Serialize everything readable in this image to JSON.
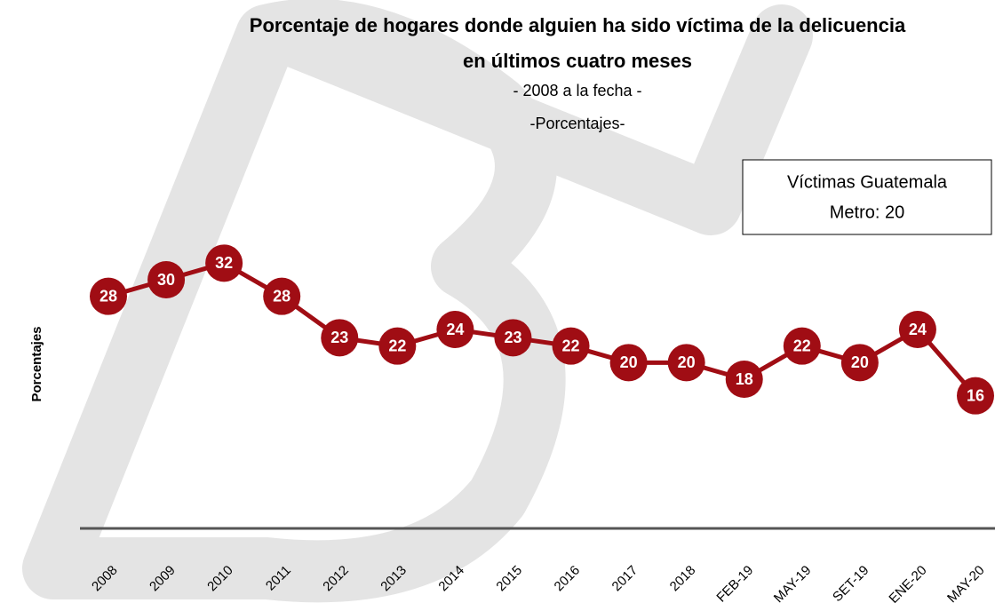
{
  "chart_data": {
    "type": "line",
    "title": [
      "Porcentaje de hogares donde alguien ha sido víctima de la delicuencia",
      "en últimos cuatro meses"
    ],
    "subtitle": [
      "- 2008 a la fecha -",
      "-Porcentajes-"
    ],
    "annotation": [
      "Víctimas Guatemala",
      "Metro: 20"
    ],
    "ylabel": "Porcentajes",
    "categories": [
      "2008",
      "2009",
      "2010",
      "2011",
      "2012",
      "2013",
      "2014",
      "2015",
      "2016",
      "2017",
      "2018",
      "FEB-19",
      "MAY-19",
      "SET-19",
      "ENE-20",
      "MAY-20"
    ],
    "series": [
      {
        "name": "Porcentajes",
        "color": "#a00d14",
        "values": [
          28,
          30,
          32,
          28,
          23,
          22,
          24,
          23,
          22,
          20,
          20,
          18,
          22,
          20,
          24,
          16
        ]
      }
    ],
    "ylim": [
      0,
      45
    ]
  }
}
